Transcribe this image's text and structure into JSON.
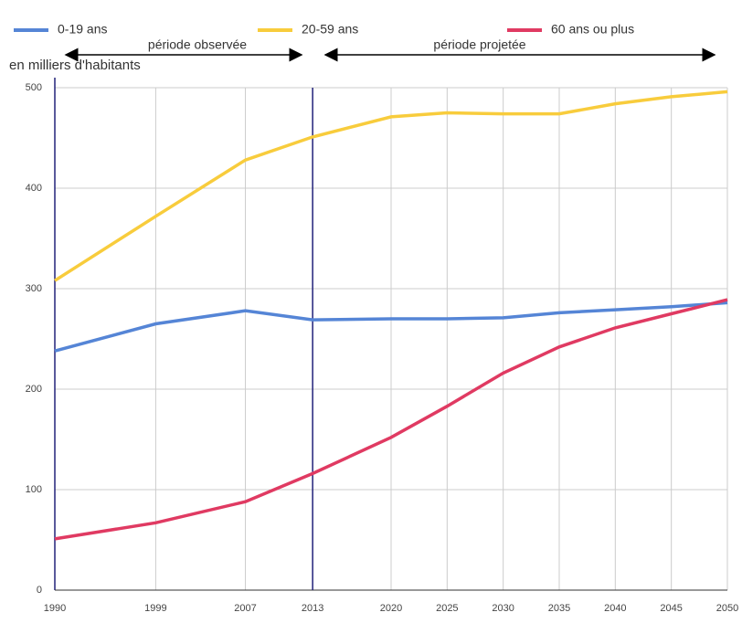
{
  "chart_data": {
    "type": "line",
    "y_label": "en milliers d'habitants",
    "annotations": [
      "période observée",
      "période projetée"
    ],
    "x": [
      1990,
      1999,
      2007,
      2013,
      2020,
      2025,
      2030,
      2035,
      2040,
      2045,
      2050
    ],
    "xlim": [
      1990,
      2050
    ],
    "xticks": [
      1990,
      1999,
      2007,
      2013,
      2020,
      2025,
      2030,
      2035,
      2040,
      2045,
      2050
    ],
    "ylim": [
      0,
      500
    ],
    "yticks": [
      0,
      100,
      200,
      300,
      400,
      500
    ],
    "grid": true,
    "vline": 2013,
    "series": [
      {
        "name": "0-19 ans",
        "color": "#5585d6",
        "values": [
          238,
          265,
          278,
          269,
          270,
          270,
          271,
          276,
          279,
          282,
          286
        ]
      },
      {
        "name": "20-59 ans",
        "color": "#f8cc3c",
        "values": [
          308,
          372,
          428,
          451,
          471,
          475,
          474,
          474,
          484,
          491,
          496
        ]
      },
      {
        "name": "60 ans ou plus",
        "color": "#e03a62",
        "values": [
          51,
          67,
          88,
          116,
          152,
          183,
          216,
          242,
          261,
          275,
          289
        ]
      }
    ]
  }
}
